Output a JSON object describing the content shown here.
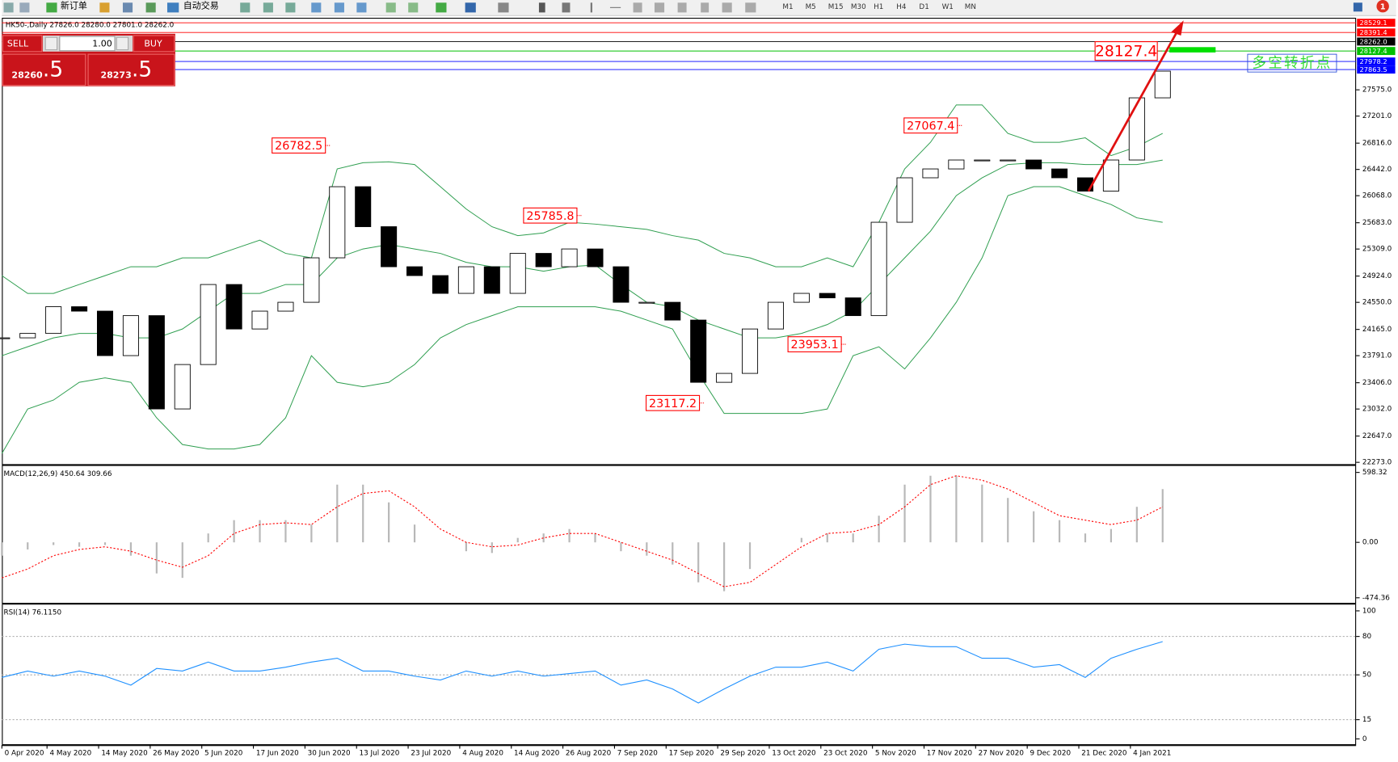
{
  "toolbar": {
    "new_order": "新订单",
    "auto_trading": "自动交易",
    "notification": "1",
    "timeframes": [
      "M1",
      "M5",
      "M15",
      "M30",
      "H1",
      "H4",
      "D1",
      "W1",
      "MN"
    ]
  },
  "trade_panel": {
    "sell": "SELL",
    "lot": "1.00",
    "buy": "BUY",
    "sell_price": "28260",
    "sell_fraction": ".5",
    "buy_price": "28273",
    "buy_fraction": ".5"
  },
  "chart_data": [
    {
      "type": "candlestick",
      "title": "HK50-,Daily  27826.0 28280.0 27801.0 28262.0",
      "x": [
        0,
        4,
        8,
        12,
        16,
        20,
        24,
        28,
        32,
        36,
        40,
        44,
        48,
        52,
        56,
        60,
        64,
        68,
        72,
        76,
        80,
        84,
        88,
        92,
        96,
        100,
        104,
        108,
        112,
        116,
        120,
        124,
        128,
        132,
        136,
        140,
        144,
        148,
        152,
        156,
        160,
        164,
        168,
        172,
        176,
        180
      ],
      "values": [
        24045,
        24108,
        24488,
        24425,
        23792,
        24361,
        23033,
        23665,
        24804,
        24171,
        24425,
        24551,
        25184,
        26196,
        25627,
        25057,
        24931,
        24678,
        25057,
        24678,
        25247,
        25057,
        25310,
        25057,
        24551,
        24551,
        24298,
        23412,
        23539,
        24171,
        24551,
        24678,
        24614,
        24361,
        25690,
        26323,
        26449,
        26576,
        26576,
        26576,
        26449,
        26323,
        26133,
        26576,
        27461,
        27841
      ],
      "up_color": "#ffffff",
      "down_color": "#000000",
      "bands": {
        "color": "#2e9e4f",
        "upper": [
          24930,
          24677,
          24677,
          24804,
          24930,
          25057,
          25057,
          25183,
          25183,
          25310,
          25436,
          25247,
          25183,
          26449,
          26537,
          26550,
          26512,
          26196,
          25879,
          25626,
          25500,
          25538,
          25689,
          25664,
          25626,
          25588,
          25500,
          25436,
          25247,
          25183,
          25057,
          25057,
          25183,
          25057,
          25689,
          26449,
          26828,
          27360,
          27360,
          26955,
          26828,
          26828,
          26892,
          26639,
          26765,
          26955
        ],
        "middle": [
          23791,
          23918,
          24044,
          24108,
          24108,
          24044,
          24044,
          24171,
          24424,
          24677,
          24677,
          24804,
          24804,
          25183,
          25310,
          25373,
          25310,
          25247,
          25120,
          25057,
          25057,
          24994,
          25057,
          25082,
          24804,
          24551,
          24487,
          24298,
          24171,
          24044,
          24044,
          24108,
          24234,
          24424,
          24804,
          25183,
          25563,
          26069,
          26322,
          26512,
          26537,
          26537,
          26512,
          26512,
          26512,
          26575
        ],
        "lower": [
          22399,
          23032,
          23159,
          23412,
          23475,
          23412,
          22906,
          22526,
          22463,
          22463,
          22526,
          22906,
          23791,
          23412,
          23349,
          23412,
          23665,
          24044,
          24234,
          24361,
          24487,
          24487,
          24487,
          24487,
          24424,
          24298,
          24171,
          23538,
          22969,
          22969,
          22969,
          22969,
          23032,
          23791,
          23918,
          23602,
          24044,
          24551,
          25183,
          26069,
          26196,
          26196,
          26069,
          25943,
          25753,
          25689
        ]
      },
      "levels": [
        {
          "value": 28529.1,
          "color": "#ff0000"
        },
        {
          "value": 28391.4,
          "color": "#ff0000"
        },
        {
          "value": 28262,
          "label": "28262.0",
          "color": "#000000"
        },
        {
          "value": 28127.4,
          "color": "#00c000"
        },
        {
          "value": 27978.2,
          "color": "#0000ff"
        },
        {
          "value": 27863.5,
          "color": "#0000ff"
        }
      ],
      "annotations": [
        {
          "x": 51,
          "value": 26782.5
        },
        {
          "x": 90,
          "value": 25785.8
        },
        {
          "x": 149,
          "value": 27067.4
        },
        {
          "x": 180,
          "value": 28127.4
        },
        {
          "x": 131,
          "value": 23953.1
        },
        {
          "x": 109,
          "value": 23117.2
        }
      ],
      "annotation_color": "#ff0000",
      "note": "多空转折点",
      "note_color": "#33dd33",
      "xlim": [
        0,
        210
      ],
      "ylim": [
        22260,
        28575
      ],
      "yticks": [
        {
          "value": 22273,
          "label": "22273.0"
        },
        {
          "value": 22647,
          "label": "22647.0"
        },
        {
          "value": 23032,
          "label": "23032.0"
        },
        {
          "value": 23406,
          "label": "23406.0"
        },
        {
          "value": 23791,
          "label": "23791.0"
        },
        {
          "value": 24165,
          "label": "24165.0"
        },
        {
          "value": 24550,
          "label": "24550.0"
        },
        {
          "value": 24924,
          "label": "24924.0"
        },
        {
          "value": 25309,
          "label": "25309.0"
        },
        {
          "value": 25683,
          "label": "25683.0"
        },
        {
          "value": 26068,
          "label": "26068.0"
        },
        {
          "value": 26442,
          "label": "26442.0"
        },
        {
          "value": 26816,
          "label": "26816.0"
        },
        {
          "value": 27201,
          "label": "27201.0"
        },
        {
          "value": 27575,
          "label": "27575.0"
        }
      ],
      "xticks": [
        {
          "value": 0,
          "label": "0 Apr 2020"
        },
        {
          "value": 7,
          "label": "4 May 2020"
        },
        {
          "value": 15,
          "label": "14 May 2020"
        },
        {
          "value": 23,
          "label": "26 May 2020"
        },
        {
          "value": 31,
          "label": "5 Jun 2020"
        },
        {
          "value": 39,
          "label": "17 Jun 2020"
        },
        {
          "value": 47,
          "label": "30 Jun 2020"
        },
        {
          "value": 55,
          "label": "13 Jul 2020"
        },
        {
          "value": 63,
          "label": "23 Jul 2020"
        },
        {
          "value": 71,
          "label": "4 Aug 2020"
        },
        {
          "value": 79,
          "label": "14 Aug 2020"
        },
        {
          "value": 87,
          "label": "26 Aug 2020"
        },
        {
          "value": 95,
          "label": "7 Sep 2020"
        },
        {
          "value": 103,
          "label": "17 Sep 2020"
        },
        {
          "value": 111,
          "label": "29 Sep 2020"
        },
        {
          "value": 119,
          "label": "13 Oct 2020"
        },
        {
          "value": 127,
          "label": "23 Oct 2020"
        },
        {
          "value": 135,
          "label": "5 Nov 2020"
        },
        {
          "value": 143,
          "label": "17 Nov 2020"
        },
        {
          "value": 151,
          "label": "27 Nov 2020"
        },
        {
          "value": 159,
          "label": "9 Dec 2020"
        },
        {
          "value": 167,
          "label": "21 Dec 2020"
        },
        {
          "value": 175,
          "label": "4 Jan 2021"
        }
      ]
    },
    {
      "type": "macd",
      "title": "MACD(12,26,9) 450.64 309.66",
      "x": [
        0,
        4,
        8,
        12,
        16,
        20,
        24,
        28,
        32,
        36,
        40,
        44,
        48,
        52,
        56,
        60,
        64,
        68,
        72,
        76,
        80,
        84,
        88,
        92,
        96,
        100,
        104,
        108,
        112,
        116,
        120,
        124,
        128,
        132,
        136,
        140,
        144,
        148,
        152,
        156,
        160,
        164,
        168,
        172,
        176,
        180
      ],
      "histogram": [
        -114,
        -61,
        -23,
        -38,
        -23,
        -114,
        -266,
        -304,
        76,
        190,
        190,
        190,
        152,
        494,
        494,
        342,
        152,
        0,
        -76,
        -91,
        38,
        76,
        114,
        76,
        -76,
        -114,
        -190,
        -342,
        -418,
        -228,
        0,
        38,
        76,
        76,
        228,
        494,
        570,
        570,
        494,
        380,
        266,
        190,
        76,
        114,
        304,
        456
      ],
      "signal": [
        -304,
        -228,
        -114,
        -61,
        -38,
        -76,
        -152,
        -213,
        -114,
        76,
        152,
        167,
        152,
        304,
        418,
        441,
        304,
        114,
        0,
        -38,
        -23,
        38,
        76,
        76,
        0,
        -76,
        -152,
        -266,
        -380,
        -342,
        -190,
        -38,
        76,
        91,
        152,
        304,
        494,
        570,
        532,
        456,
        342,
        228,
        190,
        152,
        190,
        304
      ],
      "histogram_color": "#b8b8b8",
      "signal_color": "#ff0000",
      "xlim": [
        0,
        210
      ],
      "ylim": [
        -510,
        654
      ],
      "yticks": [
        598.32,
        {
          "value": 0,
          "label": "0.00"
        },
        -474.36
      ]
    },
    {
      "type": "line",
      "title": "RSI(14) 76.1150",
      "x": [
        0,
        4,
        8,
        12,
        16,
        20,
        24,
        28,
        32,
        36,
        40,
        44,
        48,
        52,
        56,
        60,
        64,
        68,
        72,
        76,
        80,
        84,
        88,
        92,
        96,
        100,
        104,
        108,
        112,
        116,
        120,
        124,
        128,
        132,
        136,
        140,
        144,
        148,
        152,
        156,
        160,
        164,
        168,
        172,
        176,
        180
      ],
      "values": [
        48,
        53,
        49,
        53,
        49,
        42,
        55,
        53,
        60,
        53,
        53,
        56,
        60,
        63,
        53,
        53,
        49,
        46,
        53,
        49,
        53,
        49,
        51,
        53,
        42,
        46,
        39,
        28,
        39,
        49,
        56,
        56,
        60,
        53,
        70,
        74,
        72,
        72,
        63,
        63,
        56,
        58,
        48,
        63,
        70,
        76
      ],
      "color": "#1e90ff",
      "xlim": [
        0,
        210
      ],
      "ylim": [
        0,
        100
      ],
      "yticks": [
        0,
        15,
        50,
        80,
        100
      ],
      "grid_levels": [
        15,
        50,
        80
      ]
    }
  ]
}
